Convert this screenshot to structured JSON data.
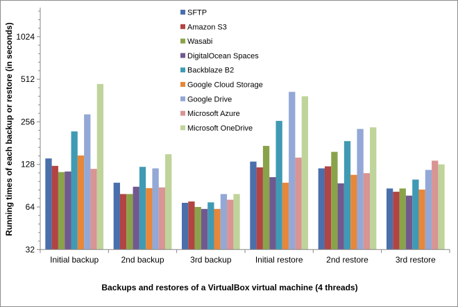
{
  "chart_data": {
    "type": "bar",
    "title": "",
    "xlabel": "Backups and restores of a VirtualBox virtual machine (4 threads)",
    "ylabel": "Running times of each backup or restore (in seconds)",
    "yscale": "log2",
    "ylim": [
      32,
      1450
    ],
    "yticks": [
      32,
      64,
      128,
      256,
      512,
      1024
    ],
    "grid": false,
    "legend_position": "top-center",
    "categories": [
      "Initial backup",
      "2nd backup",
      "3rd backup",
      "Initial restore",
      "2nd restore",
      "3rd restore"
    ],
    "series": [
      {
        "name": "SFTP",
        "color": "#4a6fab",
        "values": [
          141,
          95,
          68.5,
          134,
          120,
          86.5
        ]
      },
      {
        "name": "Amazon S3",
        "color": "#b24444",
        "values": [
          125,
          79,
          70,
          122,
          124,
          82
        ]
      },
      {
        "name": "Wasabi",
        "color": "#8aa34a",
        "values": [
          113,
          79,
          64,
          173,
          157,
          86.5
        ]
      },
      {
        "name": "DigitalOcean Spaces",
        "color": "#71598f",
        "values": [
          114,
          89,
          62,
          104,
          94,
          77
        ]
      },
      {
        "name": "Backblaze B2",
        "color": "#409ab4",
        "values": [
          219,
          123,
          69,
          260,
          187,
          100
        ]
      },
      {
        "name": "Google Cloud Storage",
        "color": "#e6873a",
        "values": [
          148,
          87,
          62,
          95,
          108,
          85
        ]
      },
      {
        "name": "Google Drive",
        "color": "#93a8d6",
        "values": [
          289,
          120,
          79,
          417,
          228,
          117
        ]
      },
      {
        "name": "Microsoft Azure",
        "color": "#d99494",
        "values": [
          119,
          88,
          72,
          143,
          111,
          136
        ]
      },
      {
        "name": "Microsoft OneDrive",
        "color": "#bfd49a",
        "values": [
          474,
          151,
          79,
          388,
          234,
          128
        ]
      }
    ]
  }
}
